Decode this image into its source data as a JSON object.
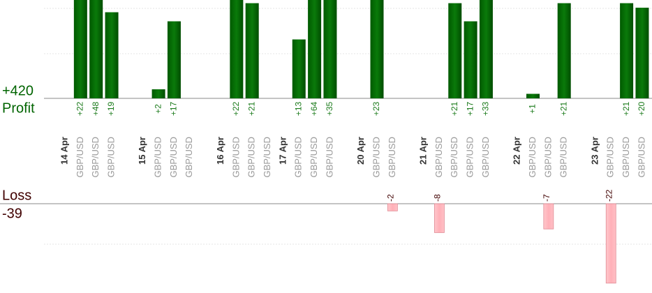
{
  "profit": {
    "label": "Profit",
    "total": "+420",
    "ylim": [
      0,
      21.7
    ]
  },
  "loss": {
    "label": "Loss",
    "total": "-39",
    "ylim": [
      -22.8,
      0
    ]
  },
  "days": [
    {
      "date": "14 Apr",
      "trades": [
        {
          "pair": "GBP/USD",
          "value": 22,
          "value_label": "+22"
        },
        {
          "pair": "GBP/USD",
          "value": 48,
          "value_label": "+48"
        },
        {
          "pair": "GBP/USD",
          "value": 19,
          "value_label": "+19"
        }
      ]
    },
    {
      "date": "15 Apr",
      "trades": [
        {
          "pair": "GBP/USD",
          "value": 2,
          "value_label": "+2"
        },
        {
          "pair": "GBP/USD",
          "value": 17,
          "value_label": "+17"
        },
        {
          "pair": "GBP/USD",
          "value": null
        }
      ]
    },
    {
      "date": "16 Apr",
      "trades": [
        {
          "pair": "GBP/USD",
          "value": 22,
          "value_label": "+22"
        },
        {
          "pair": "GBP/USD",
          "value": 21,
          "value_label": "+21"
        },
        {
          "pair": "GBP/USD",
          "value": null
        }
      ]
    },
    {
      "date": "17 Apr",
      "trades": [
        {
          "pair": "GBP/USD",
          "value": 13,
          "value_label": "+13"
        },
        {
          "pair": "GBP/USD",
          "value": 64,
          "value_label": "+64"
        },
        {
          "pair": "GBP/USD",
          "value": 35,
          "value_label": "+35"
        }
      ]
    },
    {
      "date": "20 Apr",
      "trades": [
        {
          "pair": "GBP/USD",
          "value": 23,
          "value_label": "+23"
        },
        {
          "pair": "GBP/USD",
          "value": -2
        }
      ]
    },
    {
      "date": "21 Apr",
      "trades": [
        {
          "pair": "GBP/USD",
          "value": -8
        },
        {
          "pair": "GBP/USD",
          "value": 21,
          "value_label": "+21"
        },
        {
          "pair": "GBP/USD",
          "value": 17,
          "value_label": "+17"
        },
        {
          "pair": "GBP/USD",
          "value": 33,
          "value_label": "+33"
        }
      ]
    },
    {
      "date": "22 Apr",
      "trades": [
        {
          "pair": "GBP/USD",
          "value": 1,
          "value_label": "+1"
        },
        {
          "pair": "GBP/USD",
          "value": -7
        },
        {
          "pair": "GBP/USD",
          "value": 21,
          "value_label": "+21"
        }
      ]
    },
    {
      "date": "23 Apr",
      "trades": [
        {
          "pair": "GBP/USD",
          "value": -22
        },
        {
          "pair": "GBP/USD",
          "value": 21,
          "value_label": "+21"
        },
        {
          "pair": "GBP/USD",
          "value": 20,
          "value_label": "+20"
        }
      ]
    }
  ]
}
